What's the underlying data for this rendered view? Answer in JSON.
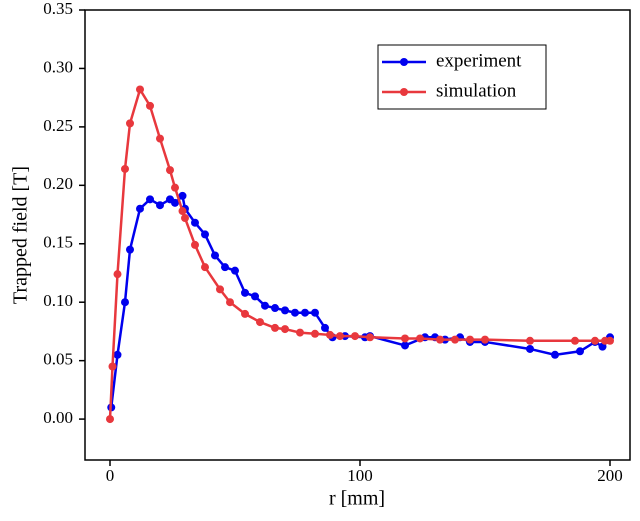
{
  "chart_data": {
    "type": "line",
    "xlabel": "r [mm]",
    "ylabel": "Trapped field [T]",
    "xlim": [
      -10,
      208
    ],
    "ylim": [
      -0.035,
      0.35
    ],
    "xticks": [
      0,
      100,
      200
    ],
    "yticks": [
      {
        "value": 0,
        "label": "0.00"
      },
      {
        "value": 0.05,
        "label": "0.05"
      },
      {
        "value": 0.1,
        "label": "0.10"
      },
      {
        "value": 0.15,
        "label": "0.15"
      },
      {
        "value": 0.2,
        "label": "0.20"
      },
      {
        "value": 0.25,
        "label": "0.25"
      },
      {
        "value": 0.3,
        "label": "0.30"
      },
      {
        "value": 0.35,
        "label": "0.35"
      }
    ],
    "legend": "upper right",
    "series": [
      {
        "name": "experiment",
        "color": "#0000ee",
        "x": [
          0.5,
          3,
          6,
          8,
          12,
          16,
          20,
          24,
          26,
          29,
          30,
          34,
          38,
          42,
          46,
          50,
          54,
          58,
          62,
          66,
          70,
          74,
          78,
          82,
          86,
          89,
          94,
          102,
          104,
          118,
          126,
          130,
          134,
          140,
          144,
          150,
          168,
          178,
          188,
          194,
          197,
          200
        ],
        "values": [
          0.01,
          0.055,
          0.1,
          0.145,
          0.18,
          0.188,
          0.183,
          0.188,
          0.185,
          0.191,
          0.18,
          0.168,
          0.158,
          0.14,
          0.13,
          0.127,
          0.108,
          0.105,
          0.097,
          0.095,
          0.093,
          0.091,
          0.091,
          0.091,
          0.078,
          0.07,
          0.071,
          0.07,
          0.071,
          0.063,
          0.07,
          0.07,
          0.068,
          0.07,
          0.066,
          0.066,
          0.06,
          0.055,
          0.058,
          0.066,
          0.062,
          0.07
        ]
      },
      {
        "name": "simulation",
        "color": "#e8383d",
        "x": [
          0,
          1,
          3,
          6,
          8,
          12,
          16,
          20,
          24,
          26,
          29,
          30,
          34,
          38,
          44,
          48,
          54,
          60,
          66,
          70,
          76,
          82,
          88,
          92,
          98,
          104,
          118,
          124,
          132,
          138,
          144,
          150,
          168,
          186,
          194,
          198,
          200
        ],
        "values": [
          0,
          0.045,
          0.124,
          0.214,
          0.253,
          0.282,
          0.268,
          0.24,
          0.213,
          0.198,
          0.178,
          0.172,
          0.149,
          0.13,
          0.111,
          0.1,
          0.09,
          0.083,
          0.078,
          0.077,
          0.074,
          0.073,
          0.072,
          0.071,
          0.071,
          0.07,
          0.069,
          0.069,
          0.068,
          0.068,
          0.068,
          0.068,
          0.067,
          0.067,
          0.067,
          0.067,
          0.067
        ]
      }
    ]
  }
}
